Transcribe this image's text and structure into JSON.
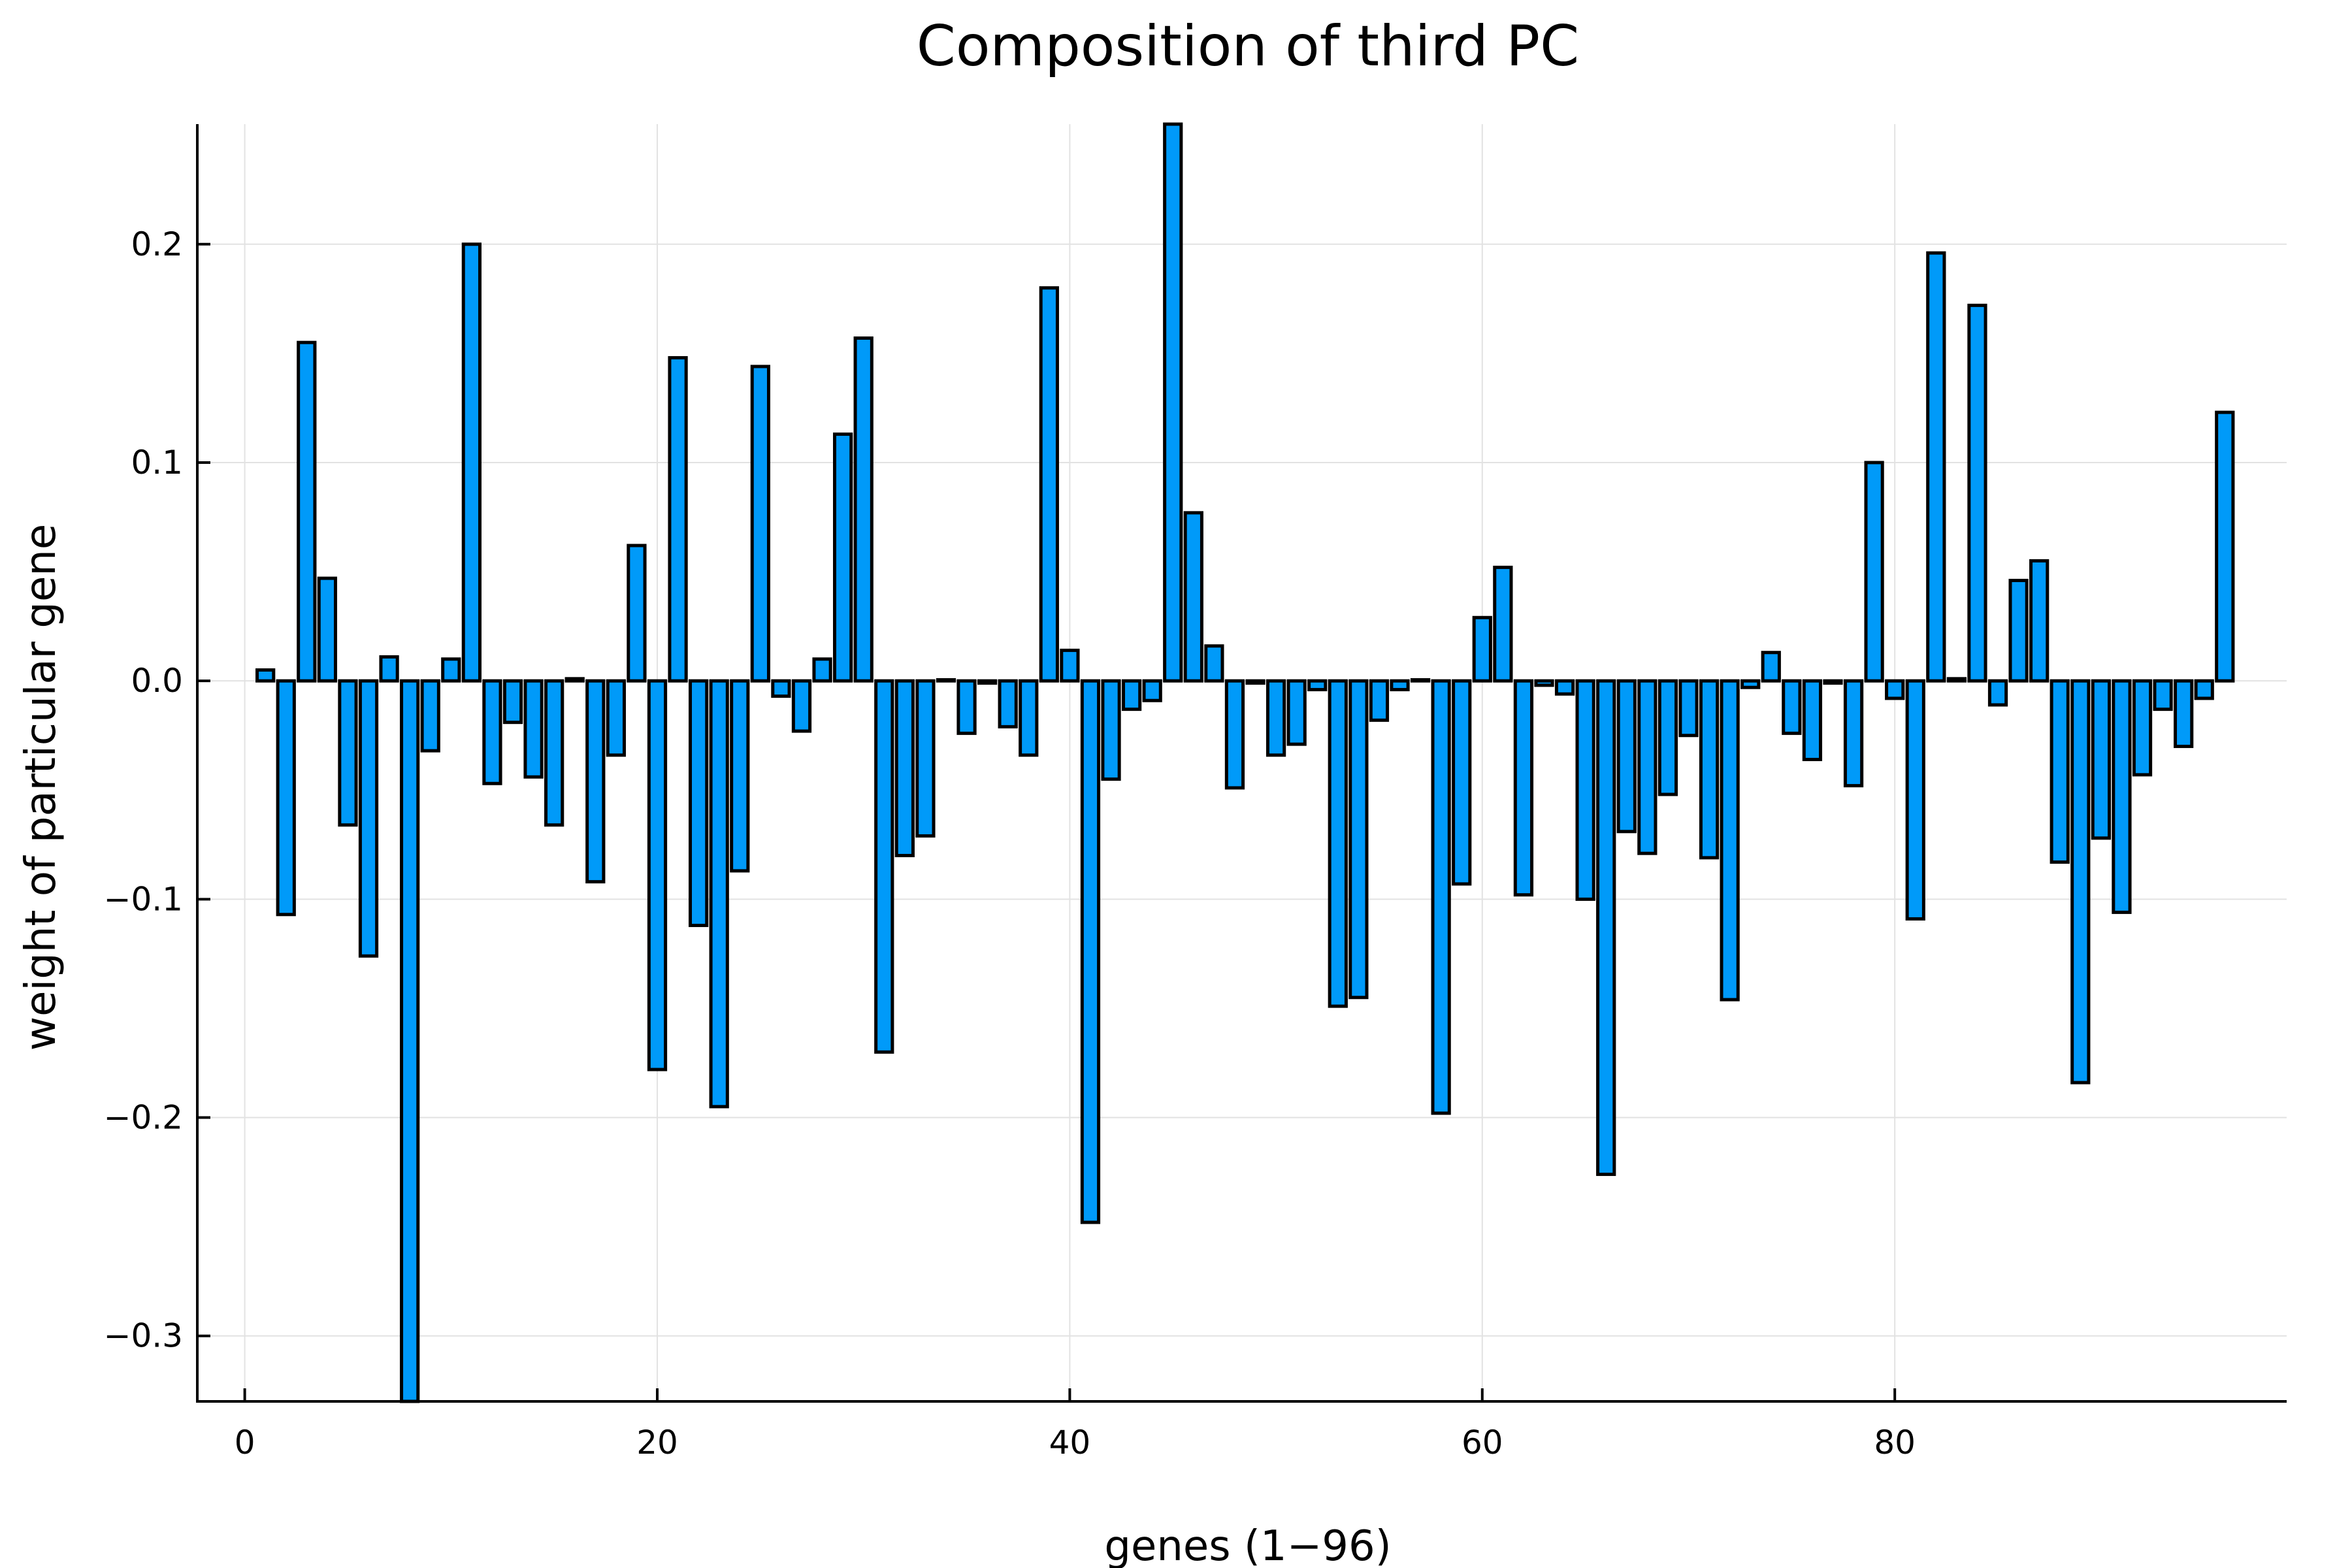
{
  "chart_data": {
    "type": "bar",
    "title": "Composition of third PC",
    "xlabel": "genes (1−96)",
    "ylabel": "weight of particular gene",
    "xlim": [
      -2.3,
      99.0
    ],
    "ylim": [
      -0.33,
      0.255
    ],
    "xticks": [
      0,
      20,
      40,
      60,
      80
    ],
    "xtick_labels": [
      "0",
      "20",
      "40",
      "60",
      "80"
    ],
    "yticks": [
      -0.3,
      -0.2,
      -0.1,
      0.0,
      0.1,
      0.2
    ],
    "ytick_labels": [
      "−0.3",
      "−0.2",
      "−0.1",
      "0.0",
      "0.1",
      "0.2"
    ],
    "grid": true,
    "bar_color": "#009af9",
    "x": [
      1,
      2,
      3,
      4,
      5,
      6,
      7,
      8,
      9,
      10,
      11,
      12,
      13,
      14,
      15,
      16,
      17,
      18,
      19,
      20,
      21,
      22,
      23,
      24,
      25,
      26,
      27,
      28,
      29,
      30,
      31,
      32,
      33,
      34,
      35,
      36,
      37,
      38,
      39,
      40,
      41,
      42,
      43,
      44,
      45,
      46,
      47,
      48,
      49,
      50,
      51,
      52,
      53,
      54,
      55,
      56,
      57,
      58,
      59,
      60,
      61,
      62,
      63,
      64,
      65,
      66,
      67,
      68,
      69,
      70,
      71,
      72,
      73,
      74,
      75,
      76,
      77,
      78,
      79,
      80,
      81,
      82,
      83,
      84,
      85,
      86,
      87,
      88,
      89,
      90,
      91,
      92,
      93,
      94,
      95,
      96
    ],
    "values": [
      0.005,
      -0.107,
      0.155,
      0.047,
      -0.066,
      -0.126,
      0.011,
      -0.33,
      -0.032,
      0.01,
      0.2,
      -0.047,
      -0.019,
      -0.044,
      -0.066,
      0.001,
      -0.092,
      -0.034,
      0.062,
      -0.178,
      0.148,
      -0.112,
      -0.195,
      -0.087,
      0.144,
      -0.007,
      -0.023,
      0.01,
      0.113,
      0.157,
      -0.17,
      -0.08,
      -0.071,
      0.0005,
      -0.024,
      -0.001,
      -0.021,
      -0.034,
      0.18,
      0.014,
      -0.248,
      -0.045,
      -0.013,
      -0.009,
      0.255,
      0.077,
      0.016,
      -0.049,
      -0.001,
      -0.034,
      -0.029,
      -0.004,
      -0.149,
      -0.145,
      -0.018,
      -0.004,
      0.0005,
      -0.198,
      -0.093,
      0.029,
      0.052,
      -0.098,
      -0.002,
      -0.006,
      -0.1,
      -0.226,
      -0.069,
      -0.079,
      -0.052,
      -0.025,
      -0.081,
      -0.146,
      -0.003,
      0.013,
      -0.024,
      -0.036,
      -0.001,
      -0.048,
      0.1,
      -0.008,
      -0.109,
      0.196,
      0.001,
      0.172,
      -0.011,
      0.046,
      0.055,
      -0.083,
      -0.184,
      -0.072,
      -0.106,
      -0.043,
      -0.013,
      -0.03,
      -0.008,
      0.123
    ]
  }
}
